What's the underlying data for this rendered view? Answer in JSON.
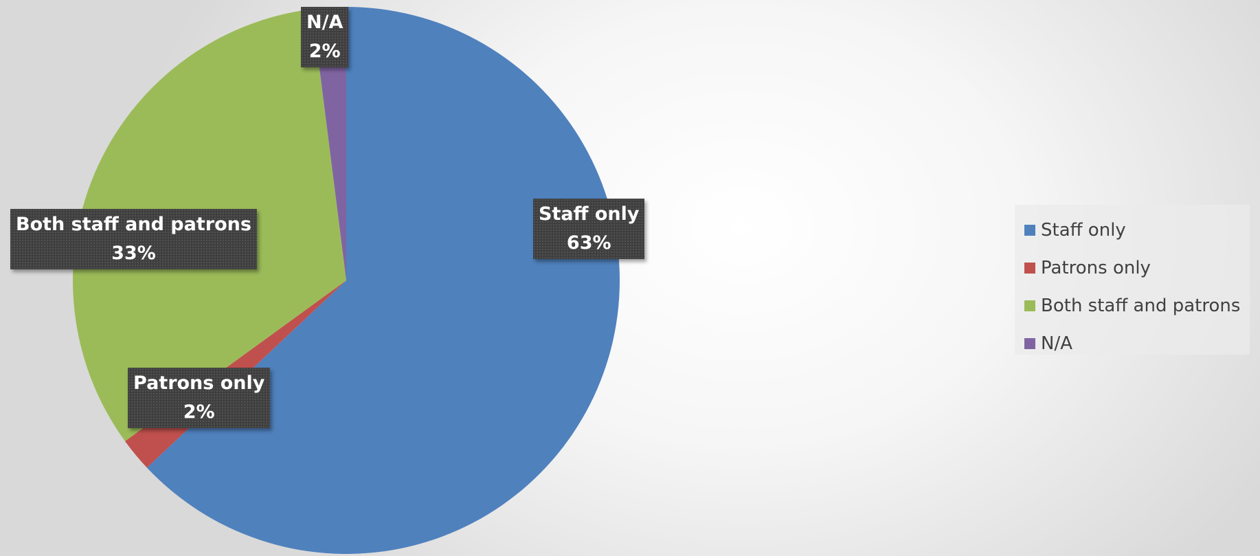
{
  "chart_data": {
    "type": "pie",
    "title": "",
    "categories": [
      "Staff only",
      "Patrons only",
      "Both staff and patrons",
      "N/A"
    ],
    "values": [
      63,
      2,
      33,
      2
    ],
    "value_labels": [
      "63%",
      "2%",
      "33%",
      "2%"
    ],
    "colors": [
      "#4f81bd",
      "#c0504d",
      "#9bbb59",
      "#8064a2"
    ],
    "start_angle_deg": 0,
    "direction": "clockwise",
    "legend_position": "right"
  }
}
